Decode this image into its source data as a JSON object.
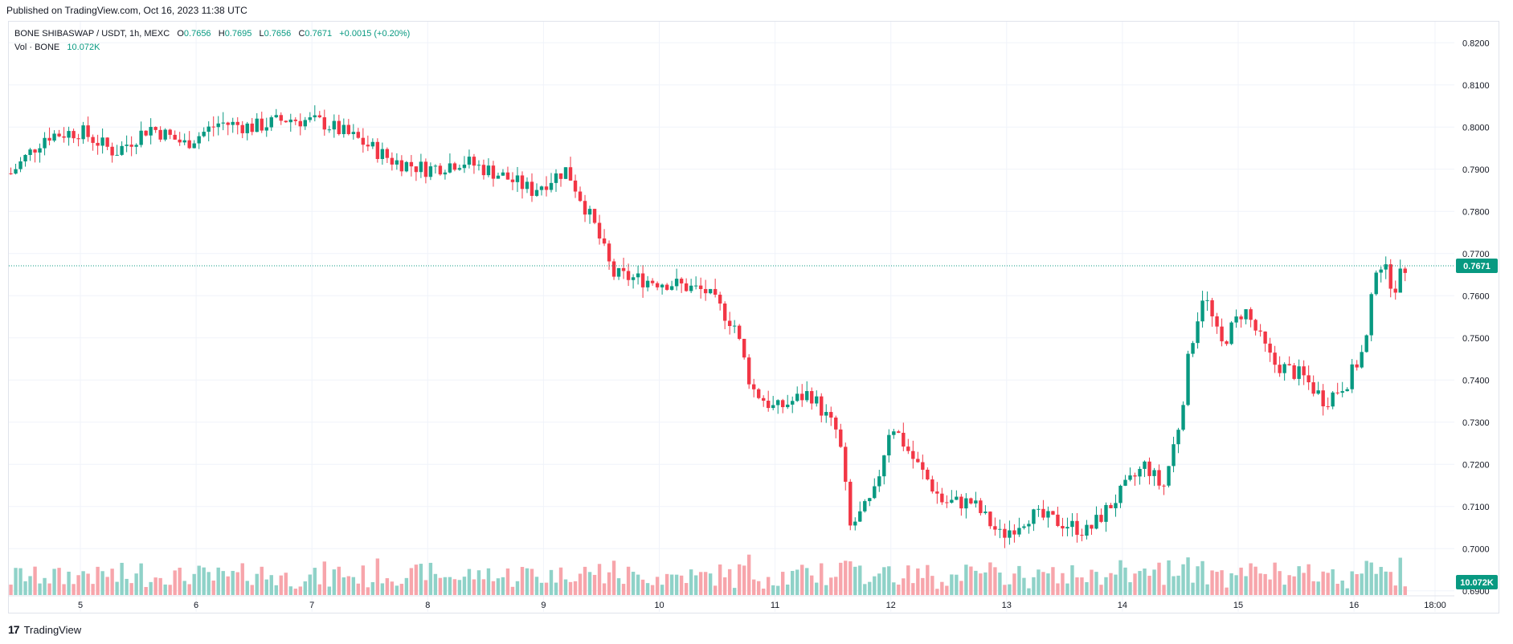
{
  "header": {
    "published": "Published on TradingView.com, Oct 16, 2023 11:38 UTC"
  },
  "legend": {
    "symbol": "BONE SHIBASWAP / USDT, 1h, MEXC",
    "o_label": "O",
    "o": "0.7656",
    "h_label": "H",
    "h": "0.7695",
    "l_label": "L",
    "l": "0.7656",
    "c_label": "C",
    "c": "0.7671",
    "change": "+0.0015 (+0.20%)",
    "vol_label": "Vol · BONE",
    "vol_value": "10.072K"
  },
  "footer": {
    "brand": "TradingView",
    "logo": "17"
  },
  "colors": {
    "up": "#089981",
    "down": "#f23645",
    "up_vol": "#8fd2c8",
    "down_vol": "#f7a5ab",
    "grid": "#f0f3fa"
  },
  "chart_data": {
    "type": "candlestick",
    "y_axis": {
      "min": 0.685,
      "max": 0.825,
      "ticks": [
        "0.6900",
        "0.7000",
        "0.7100",
        "0.7200",
        "0.7300",
        "0.7400",
        "0.7500",
        "0.7600",
        "0.7700",
        "0.7800",
        "0.7900",
        "0.8000",
        "0.8100",
        "0.8200"
      ]
    },
    "x_axis": {
      "ticks": [
        "5",
        "6",
        "7",
        "8",
        "9",
        "10",
        "11",
        "12",
        "13",
        "14",
        "15",
        "16",
        "18:00"
      ]
    },
    "last_price": "0.7671",
    "last_volume": "10.072K",
    "close_series": [
      {
        "day": 4.4,
        "close": 0.789
      },
      {
        "day": 4.7,
        "close": 0.798
      },
      {
        "day": 5.0,
        "close": 0.799
      },
      {
        "day": 5.3,
        "close": 0.794
      },
      {
        "day": 5.6,
        "close": 0.8
      },
      {
        "day": 5.9,
        "close": 0.796
      },
      {
        "day": 6.2,
        "close": 0.801
      },
      {
        "day": 6.5,
        "close": 0.8
      },
      {
        "day": 6.8,
        "close": 0.802
      },
      {
        "day": 7.1,
        "close": 0.801
      },
      {
        "day": 7.4,
        "close": 0.797
      },
      {
        "day": 7.7,
        "close": 0.792
      },
      {
        "day": 8.0,
        "close": 0.79
      },
      {
        "day": 8.3,
        "close": 0.792
      },
      {
        "day": 8.6,
        "close": 0.789
      },
      {
        "day": 8.9,
        "close": 0.785
      },
      {
        "day": 9.2,
        "close": 0.79
      },
      {
        "day": 9.45,
        "close": 0.776
      },
      {
        "day": 9.6,
        "close": 0.765
      },
      {
        "day": 9.8,
        "close": 0.764
      },
      {
        "day": 10.1,
        "close": 0.763
      },
      {
        "day": 10.4,
        "close": 0.761
      },
      {
        "day": 10.65,
        "close": 0.753
      },
      {
        "day": 10.8,
        "close": 0.738
      },
      {
        "day": 11.0,
        "close": 0.733
      },
      {
        "day": 11.3,
        "close": 0.737
      },
      {
        "day": 11.55,
        "close": 0.727
      },
      {
        "day": 11.65,
        "close": 0.705
      },
      {
        "day": 11.85,
        "close": 0.712
      },
      {
        "day": 12.0,
        "close": 0.73
      },
      {
        "day": 12.2,
        "close": 0.721
      },
      {
        "day": 12.45,
        "close": 0.711
      },
      {
        "day": 12.7,
        "close": 0.711
      },
      {
        "day": 12.95,
        "close": 0.703
      },
      {
        "day": 13.2,
        "close": 0.708
      },
      {
        "day": 13.5,
        "close": 0.706
      },
      {
        "day": 13.7,
        "close": 0.704
      },
      {
        "day": 13.95,
        "close": 0.712
      },
      {
        "day": 14.2,
        "close": 0.72
      },
      {
        "day": 14.35,
        "close": 0.714
      },
      {
        "day": 14.5,
        "close": 0.731
      },
      {
        "day": 14.58,
        "close": 0.747
      },
      {
        "day": 14.7,
        "close": 0.761
      },
      {
        "day": 14.85,
        "close": 0.748
      },
      {
        "day": 15.05,
        "close": 0.757
      },
      {
        "day": 15.3,
        "close": 0.744
      },
      {
        "day": 15.55,
        "close": 0.741
      },
      {
        "day": 15.75,
        "close": 0.735
      },
      {
        "day": 15.95,
        "close": 0.74
      },
      {
        "day": 16.1,
        "close": 0.748
      },
      {
        "day": 16.2,
        "close": 0.769
      },
      {
        "day": 16.35,
        "close": 0.762
      },
      {
        "day": 16.45,
        "close": 0.7671
      }
    ]
  }
}
